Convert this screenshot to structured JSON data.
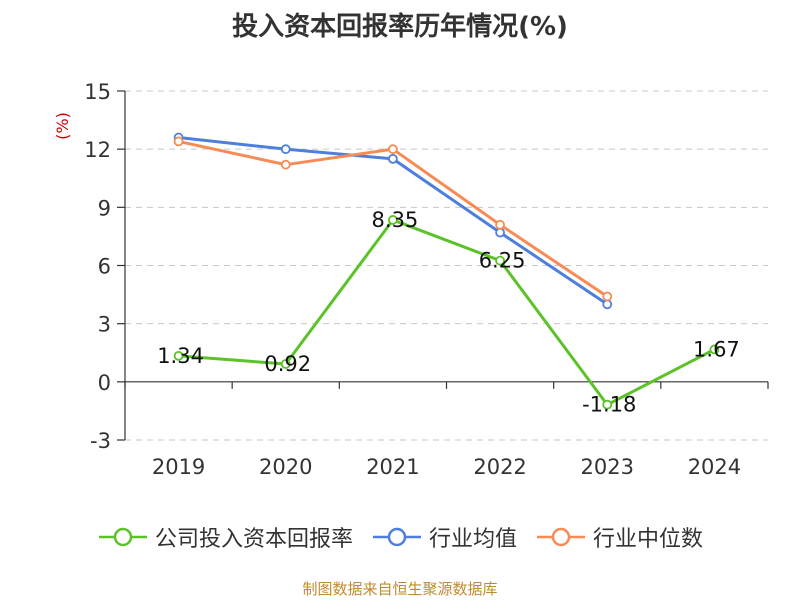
{
  "title": "投入资本回报率历年情况(%)",
  "source": "制图数据来自恒生聚源数据库",
  "chart_data": {
    "type": "line",
    "title": "投入资本回报率历年情况(%)",
    "ylabel": "(%)",
    "xlabel": "",
    "categories": [
      "2019",
      "2020",
      "2021",
      "2022",
      "2023",
      "2024"
    ],
    "ylim": [
      -3,
      15
    ],
    "yticks": [
      -3,
      0,
      3,
      6,
      9,
      12,
      15
    ],
    "grid": true,
    "legend_position": "bottom",
    "series": [
      {
        "name": "公司投入资本回报率",
        "color": "#5cc22a",
        "values": [
          1.34,
          0.92,
          8.35,
          6.25,
          -1.18,
          1.67
        ],
        "labels": [
          "1.34",
          "0.92",
          "8.35",
          "6.25",
          "-1.18",
          "1.67"
        ]
      },
      {
        "name": "行业均值",
        "color": "#4f7fdc",
        "values": [
          12.6,
          12.0,
          11.5,
          7.7,
          4.0,
          null
        ]
      },
      {
        "name": "行业中位数",
        "color": "#f78b55",
        "values": [
          12.4,
          11.2,
          12.0,
          8.1,
          4.4,
          null
        ]
      }
    ]
  }
}
